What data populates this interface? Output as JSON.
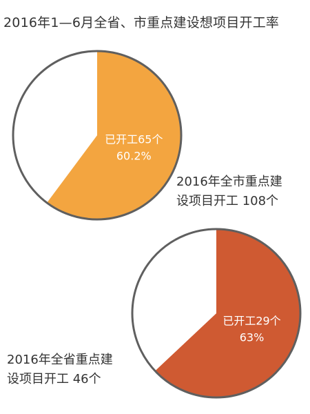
{
  "title": "2016年1—6月全省、市重点建设想项目开工率",
  "chart_data": [
    {
      "type": "pie",
      "caption_lines": [
        "2016年全市重点建",
        "设项目开工 108个"
      ],
      "slices": [
        {
          "label": "已开工65个",
          "value_label": "60.2%",
          "value": 60.2,
          "color": "#f3a540"
        },
        {
          "value": 39.8,
          "color": "#ffffff"
        }
      ]
    },
    {
      "type": "pie",
      "caption_lines": [
        "2016年全省重点建",
        "设项目开工  46个"
      ],
      "slices": [
        {
          "label": "已开工29个",
          "value_label": "63%",
          "value": 63,
          "color": "#cf5a32"
        },
        {
          "value": 37,
          "color": "#ffffff"
        }
      ]
    }
  ]
}
